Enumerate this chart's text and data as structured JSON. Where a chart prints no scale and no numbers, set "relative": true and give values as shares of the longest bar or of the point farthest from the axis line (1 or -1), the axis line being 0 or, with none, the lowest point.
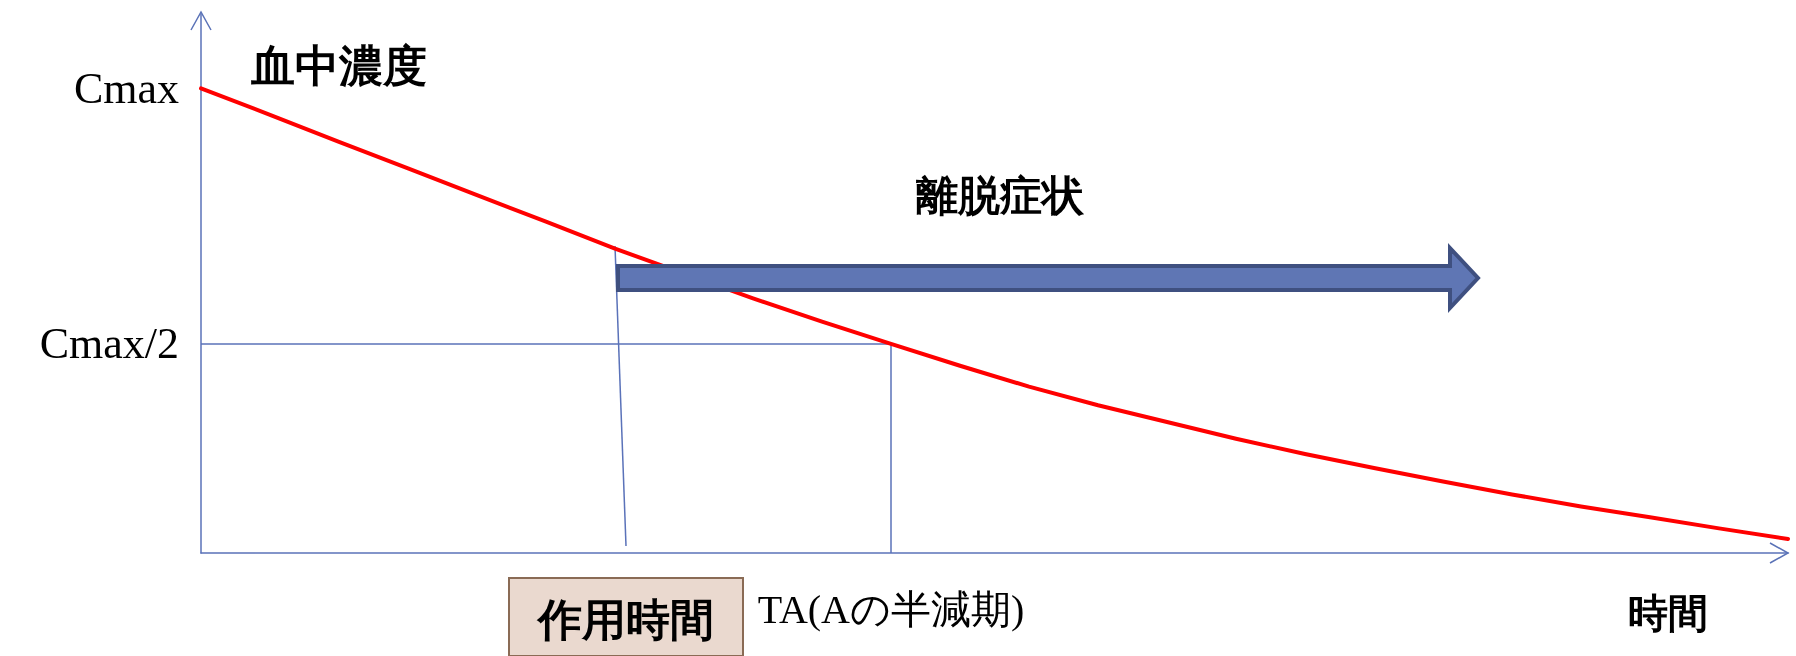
{
  "chart_data": {
    "type": "line",
    "relative": true,
    "ylabel": "血中濃度",
    "xlabel": "時間",
    "categories": [
      null,
      null,
      null,
      null,
      null,
      null,
      null,
      null,
      null,
      null,
      null,
      null,
      null,
      null,
      null,
      null,
      null,
      null,
      null,
      null,
      null,
      null,
      null,
      null
    ],
    "series": [
      {
        "color": "#ff0000",
        "values": [
          1,
          0.943,
          0.885,
          0.828,
          0.77,
          0.713,
          0.655,
          null,
          0.548,
          0.498,
          0.45,
          0.403,
          0.358,
          0.318,
          0.282,
          0.246,
          0.213,
          0.183,
          0.154,
          0.126,
          0.1,
          0.077,
          0.053,
          0.03
        ]
      }
    ],
    "ref_lines": [
      {
        "axis": "y",
        "value": 0.45,
        "label": "Cmax/2",
        "color": "#5a72b8"
      }
    ],
    "annotations": [
      "Cmax",
      "離脱症状",
      "作用時間",
      "TA(Aの半減期)"
    ],
    "grid": false,
    "marker": "none",
    "line_style": "solid"
  }
}
